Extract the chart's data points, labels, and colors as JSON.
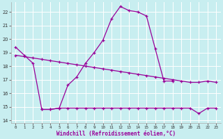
{
  "xlabel": "Windchill (Refroidissement éolien,°C)",
  "background_color": "#c8eef0",
  "grid_color": "#ffffff",
  "line_color": "#990099",
  "xlim": [
    -0.5,
    23.5
  ],
  "ylim": [
    13.8,
    22.7
  ],
  "yticks": [
    14,
    15,
    16,
    17,
    18,
    19,
    20,
    21,
    22
  ],
  "xticks": [
    0,
    1,
    2,
    3,
    4,
    5,
    6,
    7,
    8,
    9,
    10,
    11,
    12,
    13,
    14,
    15,
    16,
    17,
    18,
    19,
    20,
    21,
    22,
    23
  ],
  "lineA_x": [
    0,
    1,
    2,
    3,
    4,
    5,
    6,
    7,
    8,
    9,
    10,
    11,
    12,
    13,
    14,
    15,
    16,
    17,
    18
  ],
  "lineA_y": [
    19.4,
    18.8,
    18.2,
    14.8,
    14.8,
    14.9,
    16.6,
    17.2,
    18.2,
    19.0,
    19.9,
    21.5,
    22.4,
    22.1,
    22.0,
    21.7,
    19.3,
    16.9,
    16.9
  ],
  "lineB_x": [
    3,
    4,
    5,
    6,
    7,
    8,
    9,
    10,
    11,
    12,
    13,
    14,
    15,
    16,
    17,
    18,
    19,
    20,
    21,
    22,
    23
  ],
  "lineB_y": [
    14.8,
    14.8,
    14.9,
    14.9,
    14.9,
    14.9,
    14.9,
    14.9,
    14.9,
    14.9,
    14.9,
    14.9,
    14.9,
    14.9,
    14.9,
    14.9,
    14.9,
    14.9,
    14.5,
    14.9,
    14.9
  ],
  "lineC_x": [
    0,
    1,
    2,
    3,
    4,
    5,
    6,
    7,
    8,
    9,
    10,
    11,
    12,
    13,
    14,
    15,
    16,
    17,
    18,
    19,
    20,
    21,
    22,
    23
  ],
  "lineC_y": [
    18.8,
    18.7,
    18.6,
    18.5,
    18.4,
    18.3,
    18.2,
    18.1,
    18.0,
    17.9,
    17.8,
    17.7,
    17.6,
    17.5,
    17.4,
    17.3,
    17.2,
    17.1,
    17.0,
    16.9,
    16.8,
    16.8,
    16.9,
    16.8
  ]
}
